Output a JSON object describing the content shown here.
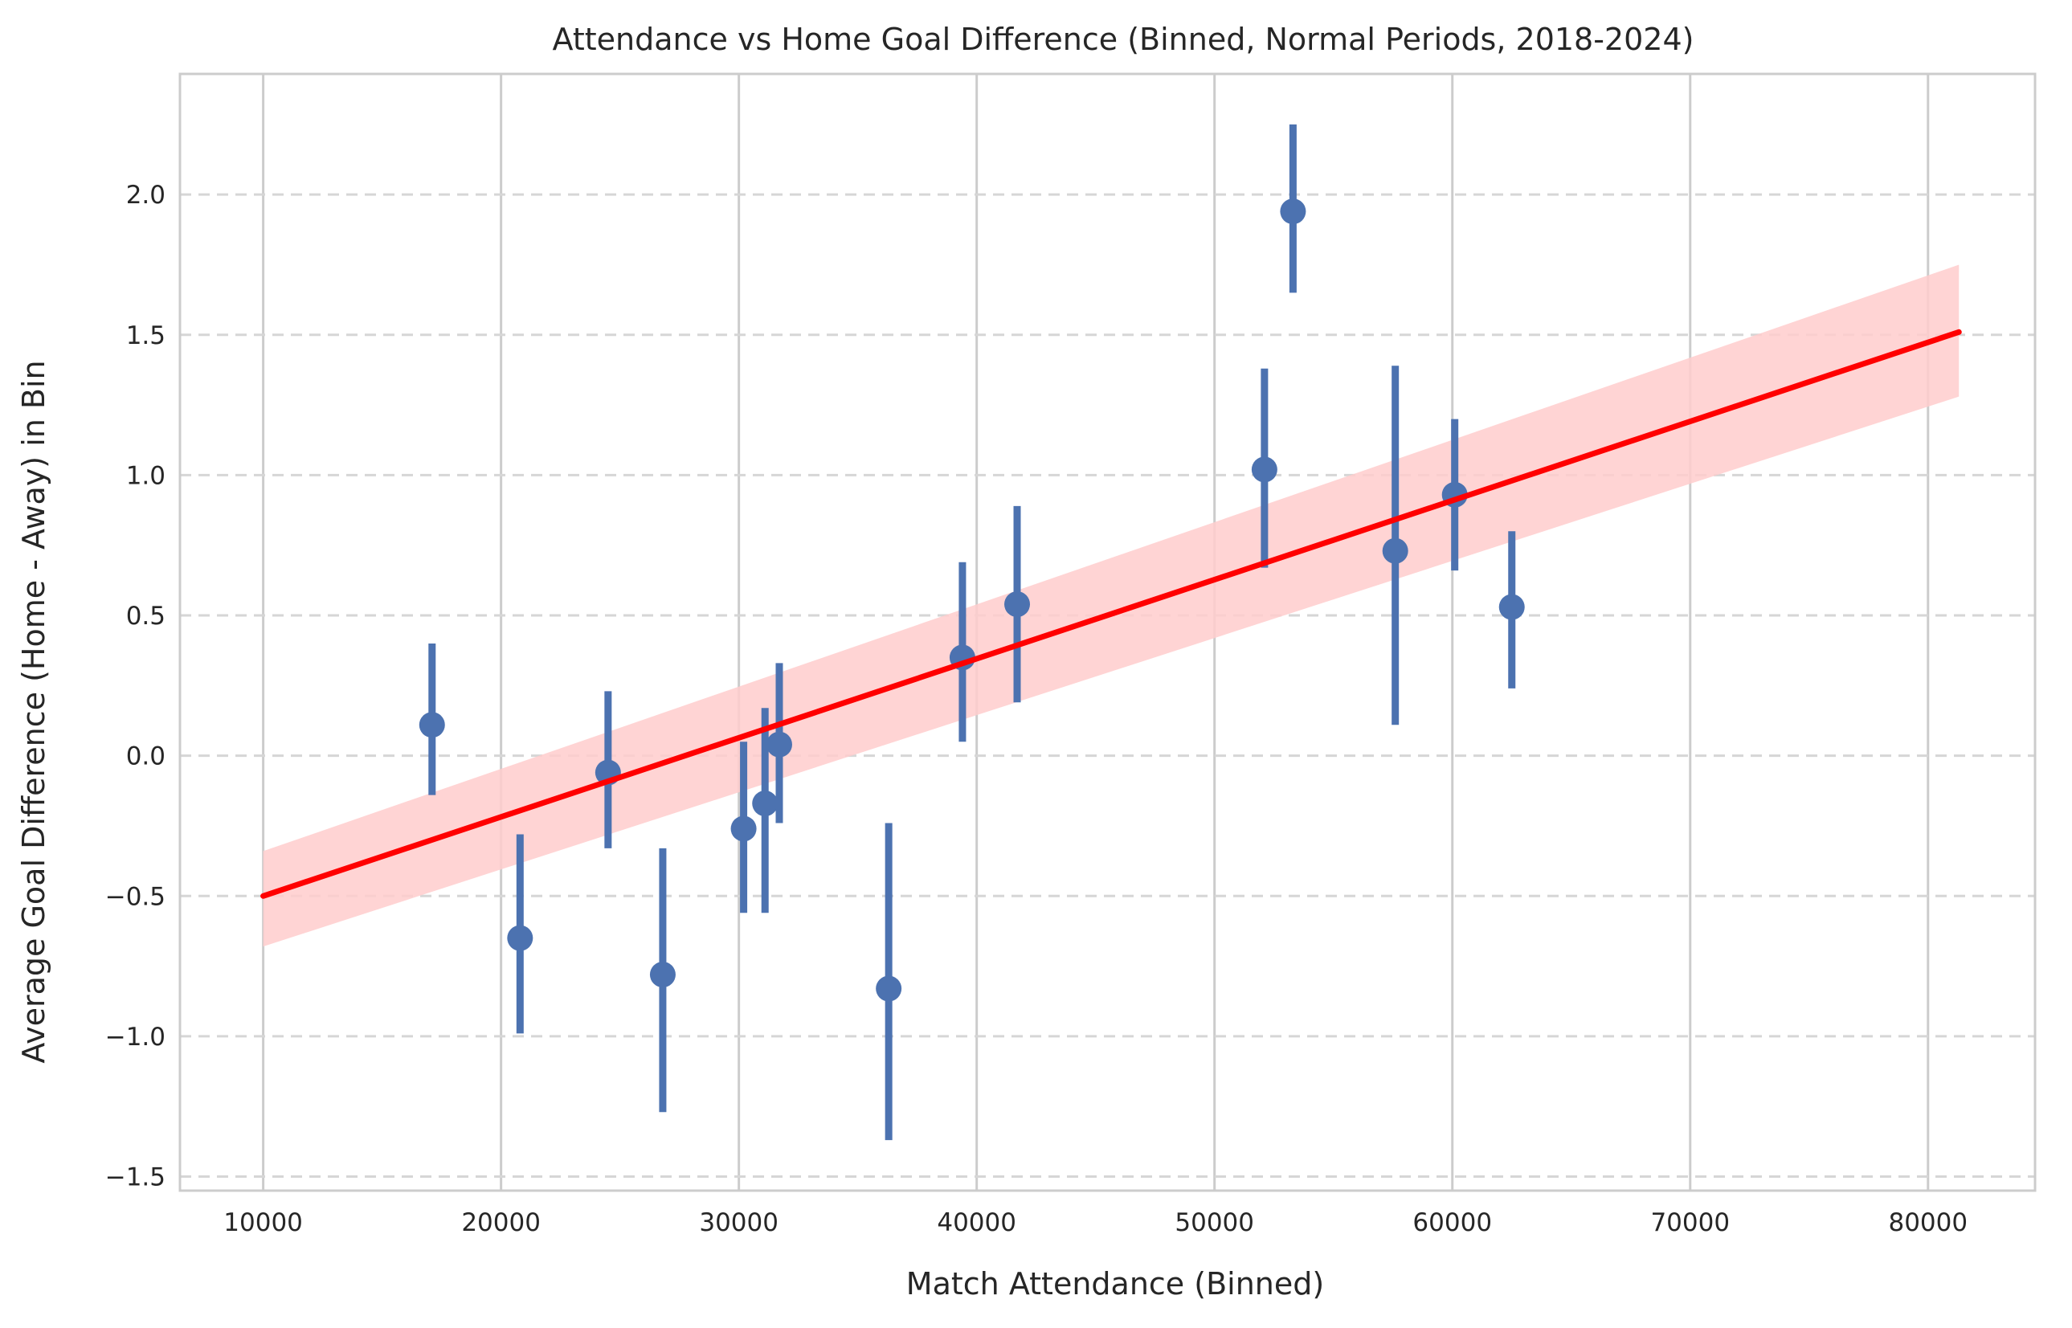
{
  "chart_data": {
    "type": "scatter",
    "title": "Attendance vs Home Goal Difference (Binned, Normal Periods, 2018-2024)",
    "xlabel": "Match Attendance (Binned)",
    "ylabel": "Average Goal Difference (Home - Away) in Bin",
    "xlim": [
      6500,
      84500
    ],
    "ylim": [
      -1.55,
      2.43
    ],
    "xticks": [
      10000,
      20000,
      30000,
      40000,
      50000,
      60000,
      70000,
      80000
    ],
    "yticks": [
      -1.5,
      -1.0,
      -0.5,
      0.0,
      0.5,
      1.0,
      1.5,
      2.0
    ],
    "xtick_labels": [
      "10000",
      "20000",
      "30000",
      "40000",
      "50000",
      "60000",
      "70000",
      "80000"
    ],
    "ytick_labels": [
      "−1.5",
      "−1.0",
      "−0.5",
      "0.0",
      "0.5",
      "1.0",
      "1.5",
      "2.0"
    ],
    "grid": {
      "x": "solid",
      "y": "dashed"
    },
    "points": [
      {
        "x": 17100,
        "y": 0.11,
        "ylow": -0.14,
        "yhigh": 0.4
      },
      {
        "x": 20800,
        "y": -0.65,
        "ylow": -0.99,
        "yhigh": -0.28
      },
      {
        "x": 24500,
        "y": -0.06,
        "ylow": -0.33,
        "yhigh": 0.23
      },
      {
        "x": 26800,
        "y": -0.78,
        "ylow": -1.27,
        "yhigh": -0.33
      },
      {
        "x": 30200,
        "y": -0.26,
        "ylow": -0.56,
        "yhigh": 0.05
      },
      {
        "x": 31100,
        "y": -0.17,
        "ylow": -0.56,
        "yhigh": 0.17
      },
      {
        "x": 31700,
        "y": 0.04,
        "ylow": -0.24,
        "yhigh": 0.33
      },
      {
        "x": 36300,
        "y": -0.83,
        "ylow": -1.37,
        "yhigh": -0.24
      },
      {
        "x": 39400,
        "y": 0.35,
        "ylow": 0.05,
        "yhigh": 0.69
      },
      {
        "x": 41700,
        "y": 0.54,
        "ylow": 0.19,
        "yhigh": 0.89
      },
      {
        "x": 52100,
        "y": 1.02,
        "ylow": 0.67,
        "yhigh": 1.38
      },
      {
        "x": 53300,
        "y": 1.94,
        "ylow": 1.65,
        "yhigh": 2.25
      },
      {
        "x": 57600,
        "y": 0.73,
        "ylow": 0.11,
        "yhigh": 1.39
      },
      {
        "x": 60100,
        "y": 0.93,
        "ylow": 0.66,
        "yhigh": 1.2
      },
      {
        "x": 62500,
        "y": 0.53,
        "ylow": 0.24,
        "yhigh": 0.8
      }
    ],
    "regression": {
      "x": [
        10000,
        81300
      ],
      "y": [
        -0.5,
        1.51
      ],
      "ci_low": [
        -0.68,
        1.28
      ],
      "ci_high": [
        -0.34,
        1.75
      ]
    },
    "colors": {
      "points": "#4c72b0",
      "regression": "#ff0000",
      "ci_band": "#ffcccc",
      "grid": "#cccccc",
      "spine": "#cccccc",
      "text": "#262626"
    }
  }
}
